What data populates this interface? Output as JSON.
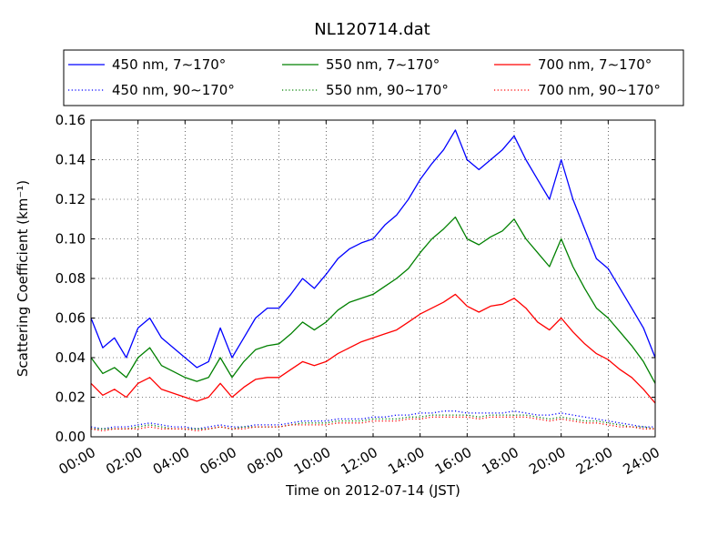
{
  "chart_data": {
    "type": "line",
    "title": "NL120714.dat",
    "xlabel": "Time on 2012-07-14 (JST)",
    "ylabel": "Scattering Coefficient (km⁻¹)",
    "xlim": [
      0,
      24
    ],
    "ylim": [
      0,
      0.16
    ],
    "grid": true,
    "legend_position": "top",
    "x_ticks": [
      0,
      2,
      4,
      6,
      8,
      10,
      12,
      14,
      16,
      18,
      20,
      22,
      24
    ],
    "x_tick_labels": [
      "00:00",
      "02:00",
      "04:00",
      "06:00",
      "08:00",
      "10:00",
      "12:00",
      "14:00",
      "16:00",
      "18:00",
      "20:00",
      "22:00",
      "24:00"
    ],
    "y_ticks": [
      0,
      0.02,
      0.04,
      0.06,
      0.08,
      0.1,
      0.12,
      0.14,
      0.16
    ],
    "y_tick_labels": [
      "0.00",
      "0.02",
      "0.04",
      "0.06",
      "0.08",
      "0.10",
      "0.12",
      "0.14",
      "0.16"
    ],
    "x": [
      0,
      0.5,
      1,
      1.5,
      2,
      2.5,
      3,
      3.5,
      4,
      4.5,
      5,
      5.5,
      6,
      6.5,
      7,
      7.5,
      8,
      8.5,
      9,
      9.5,
      10,
      10.5,
      11,
      11.5,
      12,
      12.5,
      13,
      13.5,
      14,
      14.5,
      15,
      15.5,
      16,
      16.5,
      17,
      17.5,
      18,
      18.5,
      19,
      19.5,
      20,
      20.5,
      21,
      21.5,
      22,
      22.5,
      23,
      23.5,
      24
    ],
    "series": [
      {
        "name": "450 nm, 7∼170°",
        "color": "#0000ff",
        "style": "solid",
        "values": [
          0.06,
          0.045,
          0.05,
          0.04,
          0.055,
          0.06,
          0.05,
          0.045,
          0.04,
          0.035,
          0.038,
          0.055,
          0.04,
          0.05,
          0.06,
          0.065,
          0.065,
          0.072,
          0.08,
          0.075,
          0.082,
          0.09,
          0.095,
          0.098,
          0.1,
          0.107,
          0.112,
          0.12,
          0.13,
          0.138,
          0.145,
          0.155,
          0.14,
          0.135,
          0.14,
          0.145,
          0.152,
          0.14,
          0.13,
          0.12,
          0.14,
          0.12,
          0.105,
          0.09,
          0.085,
          0.075,
          0.065,
          0.055,
          0.04
        ]
      },
      {
        "name": "550 nm, 7∼170°",
        "color": "#008000",
        "style": "solid",
        "values": [
          0.04,
          0.032,
          0.035,
          0.03,
          0.04,
          0.045,
          0.036,
          0.033,
          0.03,
          0.028,
          0.03,
          0.04,
          0.03,
          0.038,
          0.044,
          0.046,
          0.047,
          0.052,
          0.058,
          0.054,
          0.058,
          0.064,
          0.068,
          0.07,
          0.072,
          0.076,
          0.08,
          0.085,
          0.093,
          0.1,
          0.105,
          0.111,
          0.1,
          0.097,
          0.101,
          0.104,
          0.11,
          0.1,
          0.093,
          0.086,
          0.1,
          0.086,
          0.075,
          0.065,
          0.06,
          0.053,
          0.046,
          0.038,
          0.027
        ]
      },
      {
        "name": "700 nm, 7∼170°",
        "color": "#ff0000",
        "style": "solid",
        "values": [
          0.027,
          0.021,
          0.024,
          0.02,
          0.027,
          0.03,
          0.024,
          0.022,
          0.02,
          0.018,
          0.02,
          0.027,
          0.02,
          0.025,
          0.029,
          0.03,
          0.03,
          0.034,
          0.038,
          0.036,
          0.038,
          0.042,
          0.045,
          0.048,
          0.05,
          0.052,
          0.054,
          0.058,
          0.062,
          0.065,
          0.068,
          0.072,
          0.066,
          0.063,
          0.066,
          0.067,
          0.07,
          0.065,
          0.058,
          0.054,
          0.06,
          0.053,
          0.047,
          0.042,
          0.039,
          0.034,
          0.03,
          0.024,
          0.017
        ]
      },
      {
        "name": "450 nm, 90∼170°",
        "color": "#0000ff",
        "style": "dotted",
        "values": [
          0.005,
          0.004,
          0.005,
          0.005,
          0.006,
          0.007,
          0.006,
          0.005,
          0.005,
          0.004,
          0.005,
          0.006,
          0.005,
          0.005,
          0.006,
          0.006,
          0.006,
          0.007,
          0.008,
          0.008,
          0.008,
          0.009,
          0.009,
          0.009,
          0.01,
          0.01,
          0.011,
          0.011,
          0.012,
          0.012,
          0.013,
          0.013,
          0.012,
          0.012,
          0.012,
          0.012,
          0.013,
          0.012,
          0.011,
          0.011,
          0.012,
          0.011,
          0.01,
          0.009,
          0.008,
          0.007,
          0.006,
          0.005,
          0.005
        ]
      },
      {
        "name": "550 nm, 90∼170°",
        "color": "#008000",
        "style": "dotted",
        "values": [
          0.004,
          0.004,
          0.004,
          0.004,
          0.005,
          0.006,
          0.005,
          0.004,
          0.004,
          0.004,
          0.004,
          0.005,
          0.004,
          0.005,
          0.005,
          0.005,
          0.005,
          0.006,
          0.007,
          0.007,
          0.007,
          0.008,
          0.008,
          0.008,
          0.009,
          0.009,
          0.009,
          0.01,
          0.01,
          0.011,
          0.011,
          0.011,
          0.011,
          0.01,
          0.011,
          0.011,
          0.011,
          0.011,
          0.01,
          0.009,
          0.01,
          0.009,
          0.008,
          0.008,
          0.007,
          0.006,
          0.005,
          0.005,
          0.004
        ]
      },
      {
        "name": "700 nm, 90∼170°",
        "color": "#ff0000",
        "style": "dotted",
        "values": [
          0.004,
          0.003,
          0.004,
          0.004,
          0.004,
          0.005,
          0.004,
          0.004,
          0.004,
          0.003,
          0.004,
          0.005,
          0.004,
          0.004,
          0.005,
          0.005,
          0.005,
          0.006,
          0.006,
          0.006,
          0.006,
          0.007,
          0.007,
          0.007,
          0.008,
          0.008,
          0.008,
          0.009,
          0.009,
          0.01,
          0.01,
          0.01,
          0.01,
          0.009,
          0.01,
          0.01,
          0.01,
          0.01,
          0.009,
          0.008,
          0.009,
          0.008,
          0.007,
          0.007,
          0.006,
          0.005,
          0.005,
          0.004,
          0.004
        ]
      }
    ]
  }
}
